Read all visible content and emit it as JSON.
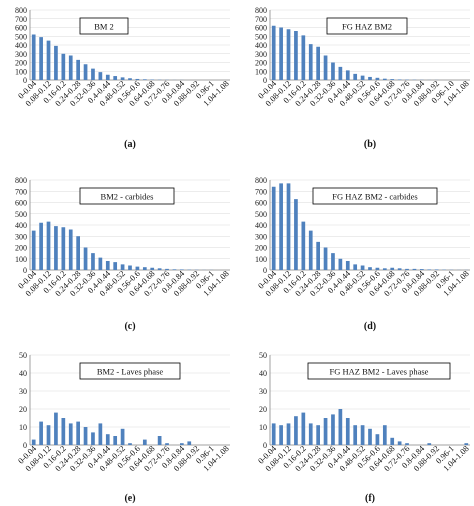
{
  "palette": {
    "bar": "#4f81bd",
    "grid": "#d9d9d9",
    "axis": "#888888"
  },
  "chart_data": [
    {
      "type": "bar",
      "caption": "(a)",
      "annotation": "BM 2",
      "ylim": [
        0,
        800
      ],
      "yticks": [
        0,
        100,
        200,
        300,
        400,
        500,
        600,
        700,
        800
      ],
      "grid": true,
      "categories": [
        "0-0.04",
        "0.04-0.08",
        "0.08-0.12",
        "0.12-0.16",
        "0.16-0.2",
        "0.2-0.24",
        "0.24-0.28",
        "0.28-0.32",
        "0.32-0.36",
        "0.36-0.4",
        "0.4-0.44",
        "0.44-0.48",
        "0.48-0.52",
        "0.52-0.56",
        "0.56-0.6",
        "0.6-0.64",
        "0.64-0.68",
        "0.68-0.72",
        "0.72-0.76",
        "0.76-0.8",
        "0.8-0.84",
        "0.84-0.88",
        "0.88-0.92",
        "0.92-0.96",
        "0.96-1",
        "1-1.04",
        "1.04-1.08"
      ],
      "tick_labels": [
        "0-0.04",
        "",
        "0.08-0.12",
        "",
        "0.16-0.2",
        "",
        "0.24-0.28",
        "",
        "0.32-0.36",
        "",
        "0.4-0.44",
        "",
        "0.48-0.52",
        "",
        "0.56-0.6",
        "",
        "0.64-0.68",
        "",
        "0.72-0.76",
        "",
        "0.8-0.84",
        "",
        "0.88-0.92",
        "",
        "0.96-1",
        "",
        "1.04-1.08"
      ],
      "values": [
        520,
        490,
        450,
        390,
        300,
        280,
        230,
        180,
        130,
        90,
        60,
        45,
        30,
        20,
        12,
        8,
        5,
        3,
        2,
        1,
        1,
        0,
        0,
        0,
        0,
        0,
        0
      ]
    },
    {
      "type": "bar",
      "caption": "(b)",
      "annotation": "FG HAZ BM2",
      "ylim": [
        0,
        800
      ],
      "yticks": [
        0,
        100,
        200,
        300,
        400,
        500,
        600,
        700,
        800
      ],
      "grid": true,
      "categories": [
        "0-0.04",
        "0.04-0.08",
        "0.08-0.12",
        "0.12-0.16",
        "0.16-0.2",
        "0.2-0.24",
        "0.24-0.28",
        "0.28-0.32",
        "0.32-0.36",
        "0.36-0.4",
        "0.4-0.44",
        "0.44-0.48",
        "0.48-0.52",
        "0.52-0.56",
        "0.56-0.6",
        "0.6-0.64",
        "0.64-0.68",
        "0.68-0.72",
        "0.72-0.76",
        "0.76-0.8",
        "0.8-0.84",
        "0.84-0.88",
        "0.88-0.92",
        "0.92-0.96",
        "0.96-1.0",
        "1-1.04",
        "1.04-1.08"
      ],
      "tick_labels": [
        "0-0.04",
        "",
        "0.08-0.12",
        "",
        "0.16-0.2",
        "",
        "0.24-0.28",
        "",
        "0.32-0.36",
        "",
        "0.4-0.44",
        "",
        "0.48-0.52",
        "",
        "0.56-0.6",
        "",
        "0.64-0.68",
        "",
        "0.72-0.76",
        "",
        "0.8-0.84",
        "",
        "0.88-0.92",
        "",
        "0.96-1.0",
        "",
        "1.04-1.08"
      ],
      "values": [
        620,
        600,
        580,
        560,
        510,
        410,
        380,
        280,
        200,
        150,
        110,
        70,
        50,
        35,
        25,
        15,
        10,
        6,
        4,
        3,
        2,
        1,
        1,
        0,
        0,
        0,
        0
      ]
    },
    {
      "type": "bar",
      "caption": "(c)",
      "annotation": "BM2 -  carbides",
      "ylim": [
        0,
        800
      ],
      "yticks": [
        0,
        100,
        200,
        300,
        400,
        500,
        600,
        700,
        800
      ],
      "grid": true,
      "categories": [
        "0-0.04",
        "0.04-0.08",
        "0.08-0.12",
        "0.12-0.16",
        "0.16-0.2",
        "0.2-0.24",
        "0.24-0.28",
        "0.28-0.32",
        "0.32-0.36",
        "0.36-0.4",
        "0.4-0.44",
        "0.44-0.48",
        "0.48-0.52",
        "0.52-0.56",
        "0.56-0.6",
        "0.6-0.64",
        "0.64-0.68",
        "0.68-0.72",
        "0.72-0.76",
        "0.76-0.8",
        "0.8-0.84",
        "0.84-0.88",
        "0.88-0.92",
        "0.92-0.96",
        "0.96-1",
        "1-1.04",
        "1.04-1.08"
      ],
      "tick_labels": [
        "0-0.04",
        "",
        "0.08-0.12",
        "",
        "0.16-0.2",
        "",
        "0.24-0.28",
        "",
        "0.32-0.36",
        "",
        "0.4-0.44",
        "",
        "0.48-0.52",
        "",
        "0.56-0.6",
        "",
        "0.64-0.68",
        "",
        "0.72-0.76",
        "",
        "0.8-0.84",
        "",
        "0.88-0.92",
        "",
        "0.96-1",
        "",
        "1.04-1.08"
      ],
      "values": [
        350,
        420,
        430,
        390,
        380,
        360,
        300,
        200,
        150,
        110,
        80,
        70,
        50,
        40,
        30,
        25,
        20,
        15,
        10,
        6,
        5,
        3,
        2,
        1,
        1,
        0,
        0
      ]
    },
    {
      "type": "bar",
      "caption": "(d)",
      "annotation": "FG HAZ BM2 - carbides",
      "ylim": [
        0,
        800
      ],
      "yticks": [
        0,
        100,
        200,
        300,
        400,
        500,
        600,
        700,
        800
      ],
      "grid": true,
      "categories": [
        "0-0.04",
        "0.04-0.08",
        "0.08-0.12",
        "0.12-0.16",
        "0.16-0.2",
        "0.2-0.24",
        "0.24-0.28",
        "0.28-0.32",
        "0.32-0.36",
        "0.36-0.4",
        "0.4-0.44",
        "0.44-0.48",
        "0.48-0.52",
        "0.52-0.56",
        "0.56-0.6",
        "0.6-0.64",
        "0.64-0.68",
        "0.68-0.72",
        "0.72-0.76",
        "0.76-0.8",
        "0.8-0.84",
        "0.84-0.88",
        "0.88-0.92",
        "0.92-0.96",
        "0.96-1",
        "1-1.04",
        "1.04-1.08"
      ],
      "tick_labels": [
        "0-0.04",
        "",
        "0.08-0.12",
        "",
        "0.16-0.2",
        "",
        "0.24-0.28",
        "",
        "0.32-0.36",
        "",
        "0.4-0.44",
        "",
        "0.48-0.52",
        "",
        "0.56-0.6",
        "",
        "0.64-0.68",
        "",
        "0.72-0.76",
        "",
        "0.8-0.84",
        "",
        "0.88-0.92",
        "",
        "0.96-1",
        "",
        "1.04-1.08"
      ],
      "values": [
        740,
        770,
        770,
        630,
        430,
        350,
        250,
        200,
        150,
        100,
        80,
        50,
        40,
        25,
        20,
        15,
        20,
        15,
        10,
        10,
        8,
        5,
        5,
        3,
        2,
        1,
        1
      ]
    },
    {
      "type": "bar",
      "caption": "(e)",
      "annotation": "BM2 - Laves phase",
      "ylim": [
        0,
        50
      ],
      "yticks": [
        0,
        10,
        20,
        30,
        40,
        50
      ],
      "grid": true,
      "categories": [
        "0-0.04",
        "0.04-0.08",
        "0.08-0.12",
        "0.12-0.16",
        "0.16-0.2",
        "0.2-0.24",
        "0.24-0.28",
        "0.28-0.32",
        "0.32-0.36",
        "0.36-0.4",
        "0.4-0.44",
        "0.44-0.48",
        "0.48-0.52",
        "0.52-0.56",
        "0.56-0.6",
        "0.6-0.64",
        "0.64-0.68",
        "0.68-0.72",
        "0.72-0.76",
        "0.76-0.8",
        "0.8-0.84",
        "0.84-0.88",
        "0.88-0.92",
        "0.92-0.96",
        "0.96-1",
        "1-1.04",
        "1.04-1.08"
      ],
      "tick_labels": [
        "0-0.04",
        "",
        "0.08-0.12",
        "",
        "0.16-0.2",
        "",
        "0.24-0.28",
        "",
        "0.32-0.36",
        "",
        "0.4-0.44",
        "",
        "0.48-0.52",
        "",
        "0.56-0.6",
        "",
        "0.64-0.68",
        "",
        "0.72-0.76",
        "",
        "0.8-0.84",
        "",
        "0.88-0.92",
        "",
        "0.96-1",
        "",
        "1.04-1.08"
      ],
      "values": [
        3,
        13,
        11,
        18,
        15,
        12,
        13,
        10,
        7,
        12,
        6,
        5,
        9,
        1,
        0,
        3,
        0,
        5,
        1,
        0,
        1,
        2,
        0,
        0,
        0,
        0,
        0
      ]
    },
    {
      "type": "bar",
      "caption": "(f)",
      "annotation": "FG HAZ BM2 - Laves phase",
      "ylim": [
        0,
        50
      ],
      "yticks": [
        0,
        10,
        20,
        30,
        40,
        50
      ],
      "grid": true,
      "categories": [
        "0-0.04",
        "0.04-0.08",
        "0.08-0.12",
        "0.12-0.16",
        "0.16-0.2",
        "0.2-0.24",
        "0.24-0.28",
        "0.28-0.32",
        "0.32-0.36",
        "0.36-0.4",
        "0.4-0.44",
        "0.44-0.48",
        "0.48-0.52",
        "0.52-0.56",
        "0.56-0.6",
        "0.6-0.64",
        "0.64-0.68",
        "0.68-0.72",
        "0.72-0.76",
        "0.76-0.8",
        "0.8-0.84",
        "0.84-0.88",
        "0.88-0.92",
        "0.92-0.96",
        "0.96-1",
        "1-1.04",
        "1.04-1.08"
      ],
      "tick_labels": [
        "0-0.04",
        "",
        "0.08-0.12",
        "",
        "0.16-0.2",
        "",
        "0.24-0.28",
        "",
        "0.32-0.36",
        "",
        "0.4-0.44",
        "",
        "0.48-0.52",
        "",
        "0.56-0.6",
        "",
        "0.64-0.68",
        "",
        "0.72-0.76",
        "",
        "0.8-0.84",
        "",
        "0.88-0.92",
        "",
        "0.96-1",
        "",
        "1.04-1.08"
      ],
      "values": [
        12,
        11,
        12,
        16,
        18,
        12,
        11,
        15,
        17,
        20,
        15,
        11,
        11,
        9,
        6,
        11,
        4,
        2,
        1,
        0,
        0,
        1,
        0,
        0,
        0,
        0,
        1
      ]
    }
  ]
}
